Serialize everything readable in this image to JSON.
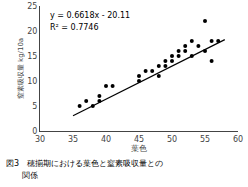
{
  "chart_data": {
    "type": "scatter",
    "title": "",
    "xlabel": "葉色",
    "ylabel": "窒素吸収量 kg/10a",
    "xlim": [
      30,
      60
    ],
    "ylim": [
      0,
      25
    ],
    "xticks": [
      30,
      35,
      40,
      45,
      50,
      55,
      60
    ],
    "yticks": [
      0,
      5,
      10,
      15,
      20,
      25
    ],
    "grid": false,
    "annotations": [
      "y = 0.6618x - 20.11",
      "R² = 0.7746"
    ],
    "caption": [
      "図3　穂揃期における葉色と窒素吸収量との",
      "　　関係"
    ],
    "series": [
      {
        "type": "scatter",
        "color": "#000000",
        "x": [
          36,
          37,
          38,
          39,
          39,
          40,
          41,
          45,
          45,
          46,
          47,
          48,
          48,
          49,
          49,
          50,
          50,
          51,
          51,
          52,
          52,
          53,
          53,
          54,
          55,
          55,
          56,
          56,
          57
        ],
        "values": [
          5,
          6,
          5,
          7,
          6,
          9,
          9,
          11,
          10,
          12,
          12,
          13,
          11,
          14,
          13,
          15,
          14,
          16,
          15,
          16,
          17,
          18,
          15,
          17,
          16,
          22,
          18,
          14,
          18
        ]
      },
      {
        "type": "line",
        "color": "#000000",
        "x": [
          35,
          58
        ],
        "values": [
          3.053,
          18.2744
        ]
      }
    ]
  }
}
